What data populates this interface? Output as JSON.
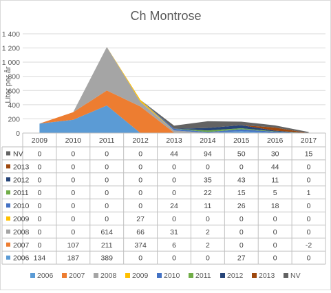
{
  "chart_data": {
    "type": "area",
    "stacked": true,
    "title": "Ch Montrose",
    "xlabel": "",
    "ylabel": "Liter per år",
    "ylim": [
      0,
      1400
    ],
    "yticks": [
      0,
      200,
      400,
      600,
      800,
      1000,
      1200,
      1400
    ],
    "ytick_labels": [
      "0",
      "200",
      "400",
      "600",
      "800",
      "1 000",
      "1 200",
      "1 400"
    ],
    "grid": true,
    "legend_position": "bottom",
    "data_table": true,
    "categories": [
      "2009",
      "2010",
      "2011",
      "2012",
      "2013",
      "2014",
      "2015",
      "2016",
      "2017"
    ],
    "series": [
      {
        "name": "2006",
        "color": "#5b9bd5",
        "values": [
          134,
          187,
          389,
          0,
          0,
          0,
          27,
          0,
          0
        ]
      },
      {
        "name": "2007",
        "color": "#ed7d31",
        "values": [
          0,
          107,
          211,
          374,
          6,
          2,
          0,
          0,
          -2
        ]
      },
      {
        "name": "2008",
        "color": "#a5a5a5",
        "values": [
          0,
          0,
          614,
          66,
          31,
          2,
          0,
          0,
          0
        ]
      },
      {
        "name": "2009",
        "color": "#ffc000",
        "values": [
          0,
          0,
          0,
          27,
          0,
          0,
          0,
          0,
          0
        ]
      },
      {
        "name": "2010",
        "color": "#4472c4",
        "values": [
          0,
          0,
          0,
          0,
          24,
          11,
          26,
          18,
          0
        ]
      },
      {
        "name": "2011",
        "color": "#70ad47",
        "values": [
          0,
          0,
          0,
          0,
          0,
          22,
          15,
          5,
          1
        ]
      },
      {
        "name": "2012",
        "color": "#264478",
        "values": [
          0,
          0,
          0,
          0,
          0,
          35,
          43,
          11,
          0
        ]
      },
      {
        "name": "2013",
        "color": "#9e480e",
        "values": [
          0,
          0,
          0,
          0,
          0,
          0,
          0,
          44,
          0
        ]
      },
      {
        "name": "NV",
        "color": "#636363",
        "values": [
          0,
          0,
          0,
          0,
          44,
          94,
          50,
          30,
          15
        ]
      }
    ]
  }
}
